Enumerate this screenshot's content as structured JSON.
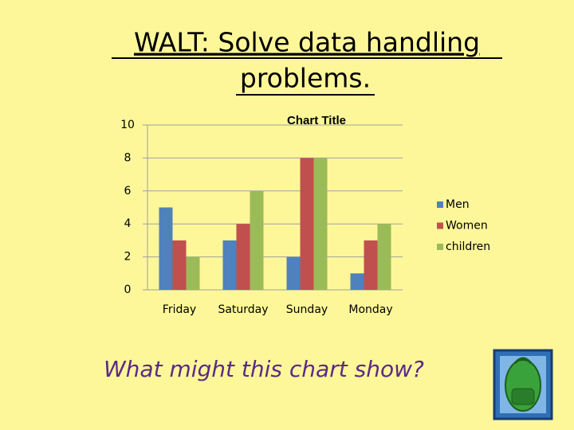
{
  "slide": {
    "heading_line1": "WALT: Solve data handling",
    "heading_line2": "problems.",
    "question": "What might this chart show?"
  },
  "chart_data": {
    "type": "bar",
    "title": "Chart Title",
    "categories": [
      "Friday",
      "Saturday",
      "Sunday",
      "Monday"
    ],
    "series": [
      {
        "name": "Men",
        "color": "#4f81bd",
        "values": [
          5,
          3,
          2,
          1
        ]
      },
      {
        "name": "Women",
        "color": "#c0504d",
        "values": [
          3,
          4,
          8,
          3
        ]
      },
      {
        "name": "children",
        "color": "#9bbb59",
        "values": [
          2,
          6,
          8,
          4
        ]
      }
    ],
    "ylim": [
      0,
      10
    ],
    "yticks": [
      0,
      2,
      4,
      6,
      8,
      10
    ],
    "grid": true,
    "legend": "right"
  }
}
